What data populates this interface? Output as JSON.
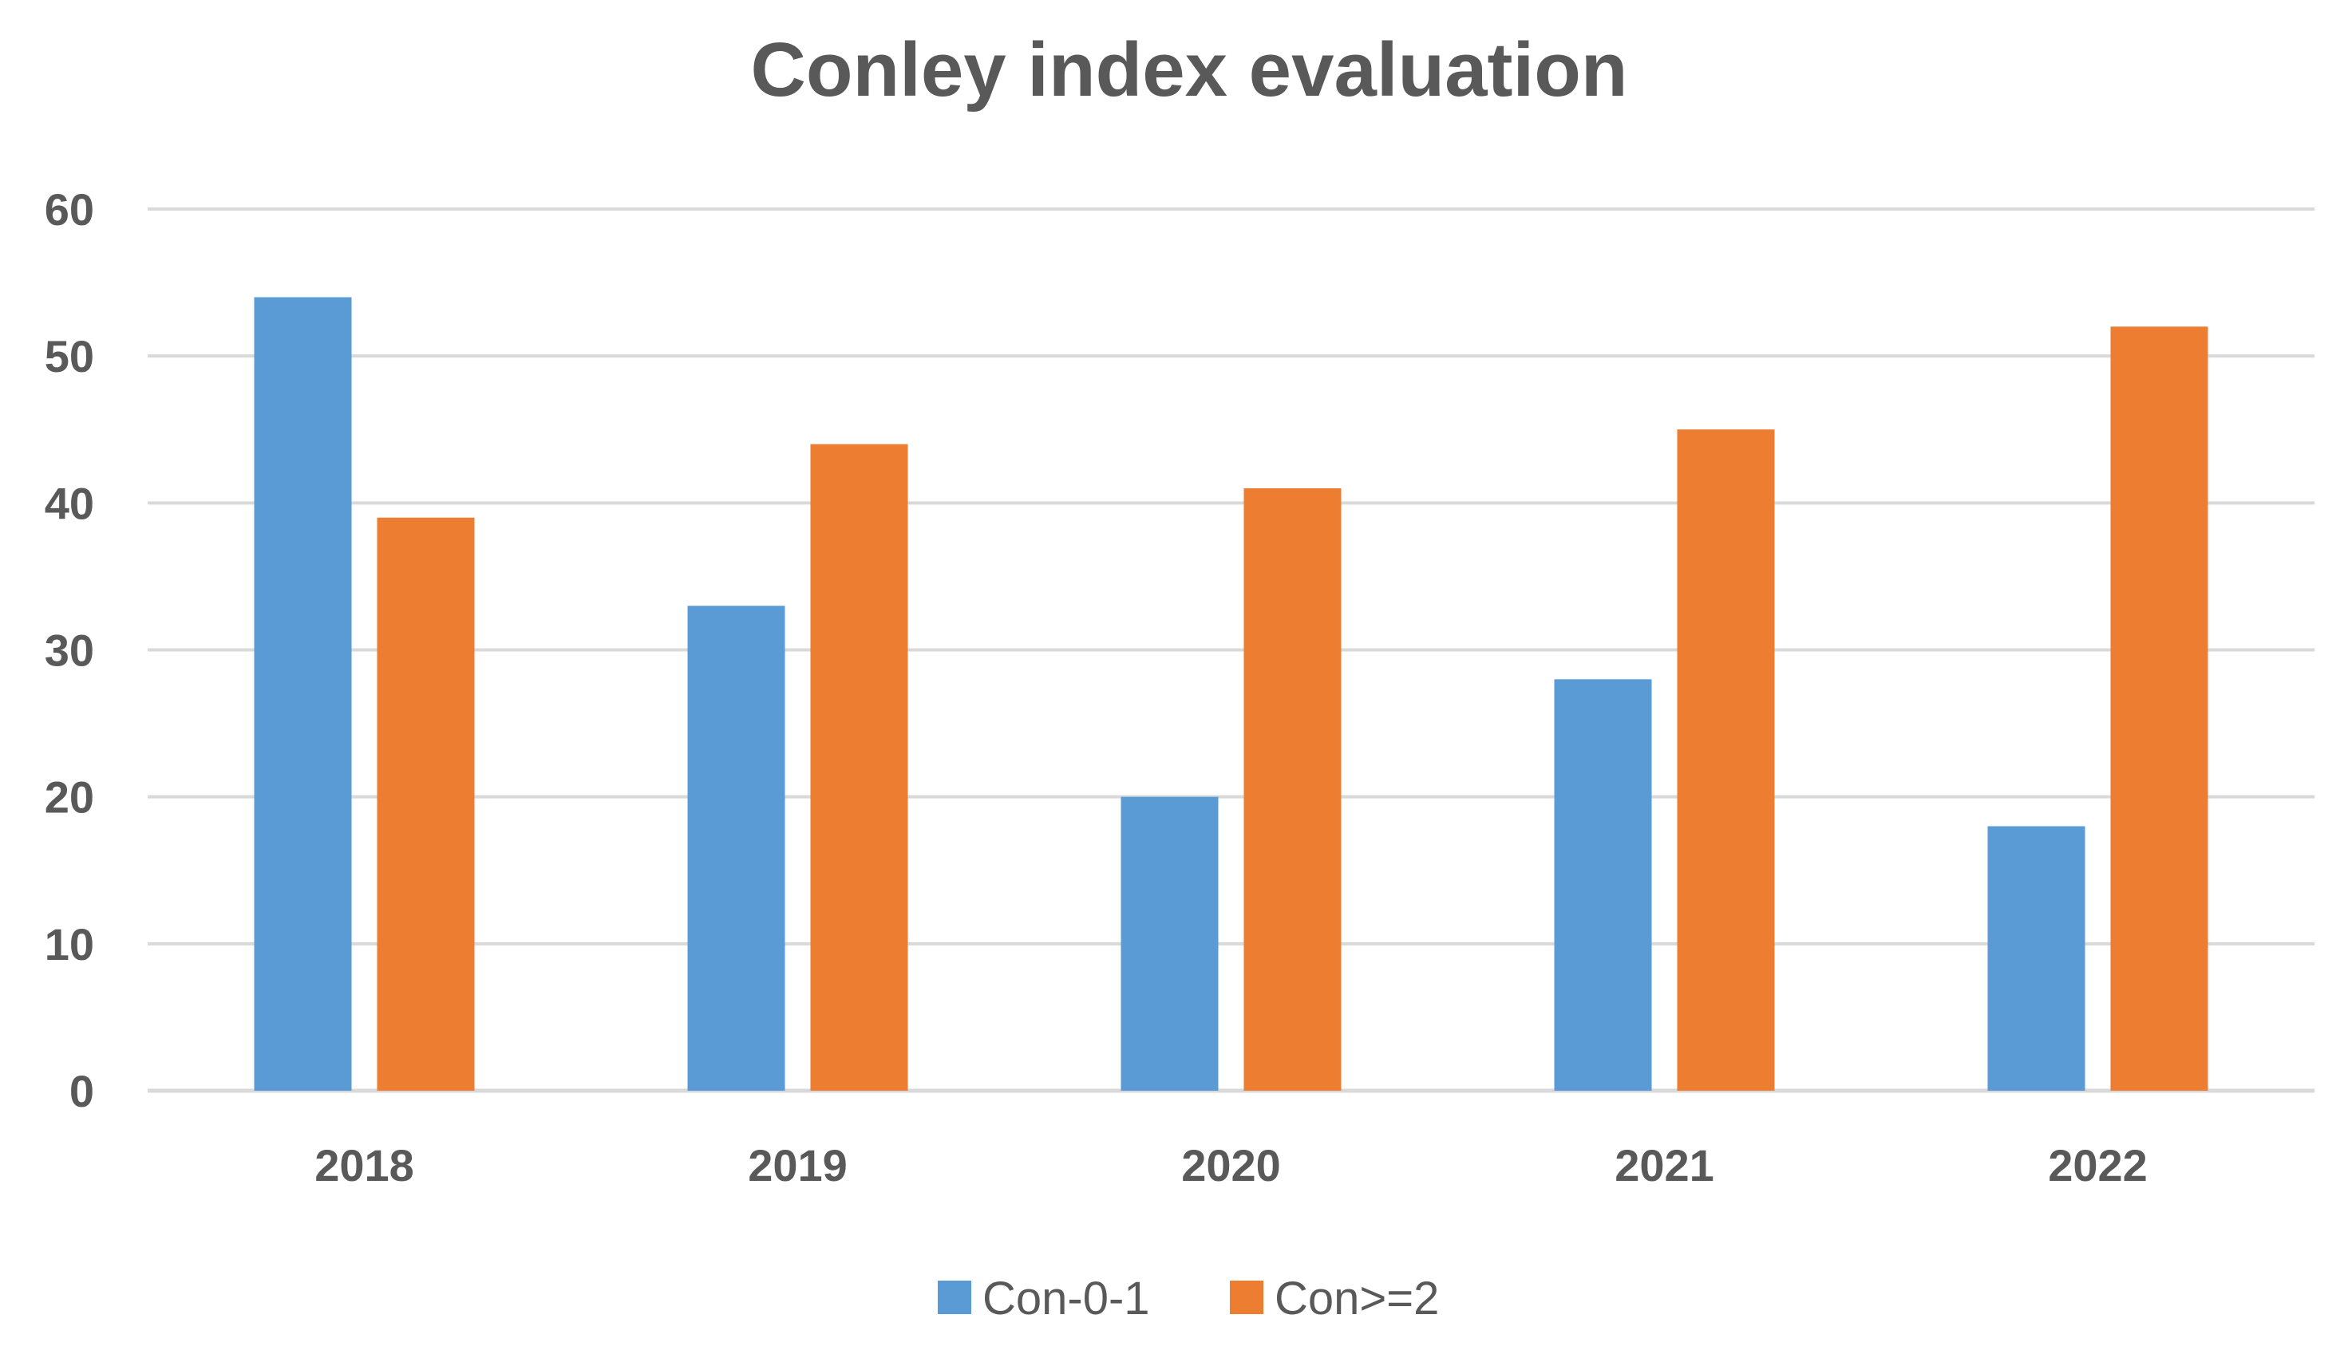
{
  "chart_data": {
    "type": "bar",
    "title": "Conley index evaluation",
    "xlabel": "",
    "ylabel": "",
    "categories": [
      "2018",
      "2019",
      "2020",
      "2021",
      "2022"
    ],
    "series": [
      {
        "name": "Con-0-1",
        "color": "#5B9BD5",
        "values": [
          54,
          33,
          20,
          28,
          18
        ]
      },
      {
        "name": "Con>=2",
        "color": "#ED7D31",
        "values": [
          39,
          44,
          41,
          45,
          52
        ]
      }
    ],
    "ylim": [
      0,
      60
    ],
    "yticks": [
      "0",
      "10",
      "20",
      "30",
      "40",
      "50",
      "60"
    ],
    "grid": true,
    "gridColor": "#D9D9D9",
    "textColor": "#595959",
    "legend": "bottom-center"
  }
}
